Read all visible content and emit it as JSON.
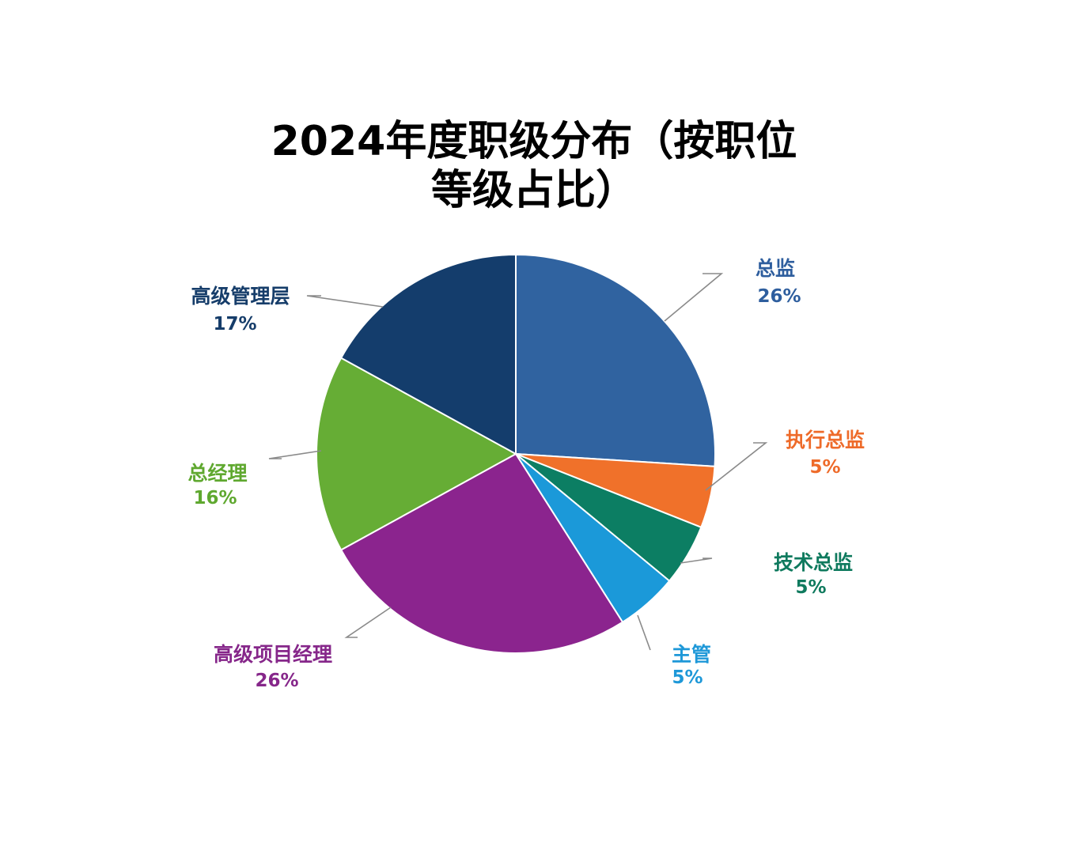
{
  "chart_data": {
    "type": "pie",
    "title_lines": [
      "2024年度职级分布（按职位",
      "等级占比）"
    ],
    "slices": [
      {
        "label": "总监",
        "value": 26,
        "value_text": "26%",
        "color": "#3063A0",
        "text_color": "#2E5E9E"
      },
      {
        "label": "执行总监",
        "value": 5,
        "value_text": "5%",
        "color": "#F0712A",
        "text_color": "#EE6B2A"
      },
      {
        "label": "技术总监",
        "value": 5,
        "value_text": "5%",
        "color": "#0C7E63",
        "text_color": "#0F7A5E"
      },
      {
        "label": "主管",
        "value": 5,
        "value_text": "5%",
        "color": "#1B99D9",
        "text_color": "#1E98D8"
      },
      {
        "label": "高级项目经理",
        "value": 26,
        "value_text": "26%",
        "color": "#8B248E",
        "text_color": "#86278A"
      },
      {
        "label": "总经理",
        "value": 16,
        "value_text": "16%",
        "color": "#66AD35",
        "text_color": "#5FA82F"
      },
      {
        "label": "高级管理层",
        "value": 17,
        "value_text": "17%",
        "color": "#143D6C",
        "text_color": "#163D6A"
      }
    ],
    "start_angle": "12 o'clock",
    "direction": "clockwise",
    "legend": "none",
    "label_placement": "outside-with-leader-lines"
  }
}
